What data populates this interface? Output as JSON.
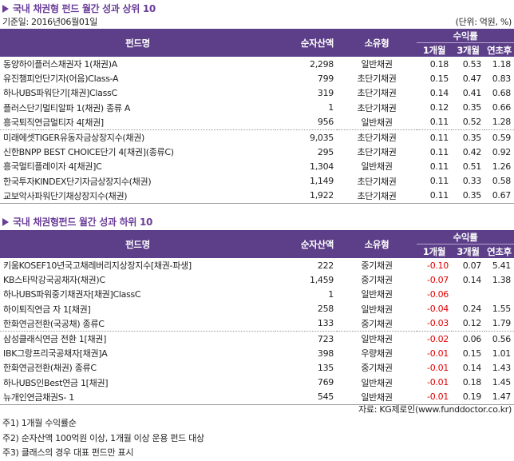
{
  "top": {
    "title": "국내 채권형 펀드 월간 성과 상위 10",
    "base_date": "기준일: 2016년06월01일",
    "unit": "(단위: 억원, %)",
    "headers": {
      "name": "펀드명",
      "assets": "순자산액",
      "type": "소유형",
      "returns": "수익률",
      "m1": "1개월",
      "m3": "3개월",
      "ytd": "연초후"
    },
    "rows": [
      {
        "name": "동양하이플러스채권자 1(채권)A",
        "assets": "2,298",
        "type": "일반채권",
        "m1": "0.18",
        "m3": "0.53",
        "ytd": "1.18"
      },
      {
        "name": "유진챔피언단기자(어음)Class-A",
        "assets": "799",
        "type": "초단기채권",
        "m1": "0.15",
        "m3": "0.47",
        "ytd": "0.83"
      },
      {
        "name": "하나UBS파워단기[채권]ClassC",
        "assets": "319",
        "type": "초단기채권",
        "m1": "0.14",
        "m3": "0.41",
        "ytd": "0.68"
      },
      {
        "name": "플러스단기멀티알파 1(채권) 종류 A",
        "assets": "1",
        "type": "초단기채권",
        "m1": "0.12",
        "m3": "0.35",
        "ytd": "0.66"
      },
      {
        "name": "흥국퇴직연금멀티자 4[채권]",
        "assets": "956",
        "type": "일반채권",
        "m1": "0.11",
        "m3": "0.52",
        "ytd": "1.28"
      },
      {
        "name": "미래에셋TIGER유동자금상장지수(채권)",
        "assets": "9,035",
        "type": "초단기채권",
        "m1": "0.11",
        "m3": "0.35",
        "ytd": "0.59"
      },
      {
        "name": "신한BNPP BEST CHOICE단기 4[채권](종류C)",
        "assets": "295",
        "type": "초단기채권",
        "m1": "0.11",
        "m3": "0.42",
        "ytd": "0.92"
      },
      {
        "name": "흥국멀티플레이자 4[채권]C",
        "assets": "1,304",
        "type": "일반채권",
        "m1": "0.11",
        "m3": "0.51",
        "ytd": "1.26"
      },
      {
        "name": "한국투자KINDEX단기자금상장지수(채권)",
        "assets": "1,149",
        "type": "초단기채권",
        "m1": "0.11",
        "m3": "0.33",
        "ytd": "0.58"
      },
      {
        "name": "교보악사파워단기채상장지수(채권)",
        "assets": "1,922",
        "type": "초단기채권",
        "m1": "0.11",
        "m3": "0.35",
        "ytd": "0.67"
      }
    ]
  },
  "bottom": {
    "title": "국내 채권형펀드 월간 성과 하위 10",
    "headers": {
      "name": "펀드명",
      "assets": "순자산액",
      "type": "소유형",
      "returns": "수익률",
      "m1": "1개월",
      "m3": "3개월",
      "ytd": "연초후"
    },
    "rows": [
      {
        "name": "키움KOSEF10년국고채레버리지상장지수[채권-파생]",
        "assets": "222",
        "type": "중기채권",
        "m1": "-0.10",
        "m3": "0.07",
        "ytd": "5.41"
      },
      {
        "name": "KB스타막강국공채자(채권)C",
        "assets": "1,459",
        "type": "중기채권",
        "m1": "-0.07",
        "m3": "0.14",
        "ytd": "1.38"
      },
      {
        "name": "하나UBS파워중기채권자[채권]ClassC",
        "assets": "1",
        "type": "일반채권",
        "m1": "-0.06",
        "m3": "",
        "ytd": ""
      },
      {
        "name": "하이퇴직연금 자 1[채권]",
        "assets": "258",
        "type": "일반채권",
        "m1": "-0.04",
        "m3": "0.24",
        "ytd": "1.55"
      },
      {
        "name": "한화연금전환(국공채) 종류C",
        "assets": "133",
        "type": "중기채권",
        "m1": "-0.03",
        "m3": "0.12",
        "ytd": "1.79"
      },
      {
        "name": "삼성클래식연금 전환 1[채권]",
        "assets": "723",
        "type": "일반채권",
        "m1": "-0.02",
        "m3": "0.06",
        "ytd": "0.56"
      },
      {
        "name": "IBK그랑프리국공채자[채권]A",
        "assets": "398",
        "type": "우량채권",
        "m1": "-0.01",
        "m3": "0.15",
        "ytd": "1.01"
      },
      {
        "name": "한화연금전환(채권) 종류C",
        "assets": "135",
        "type": "중기채권",
        "m1": "-0.01",
        "m3": "0.14",
        "ytd": "1.43"
      },
      {
        "name": "하나UBS인Best연금 1[채권]",
        "assets": "769",
        "type": "일반채권",
        "m1": "-0.01",
        "m3": "0.18",
        "ytd": "1.45"
      },
      {
        "name": "뉴개인연금채권S- 1",
        "assets": "545",
        "type": "일반채권",
        "m1": "-0.01",
        "m3": "0.19",
        "ytd": "1.47"
      }
    ]
  },
  "source": "자료: KG제로인(www.funddoctor.co.kr)",
  "notes": [
    "주1) 1개월 수익률순",
    "주2) 순자산액 100억원 이상, 1개월 이상 운용 펀드 대상",
    "주3) 클래스의 경우 대표 펀드만 표시"
  ],
  "colors": {
    "header_bg": "#5c3f88",
    "title": "#6a3d99",
    "negative": "#e00000"
  }
}
